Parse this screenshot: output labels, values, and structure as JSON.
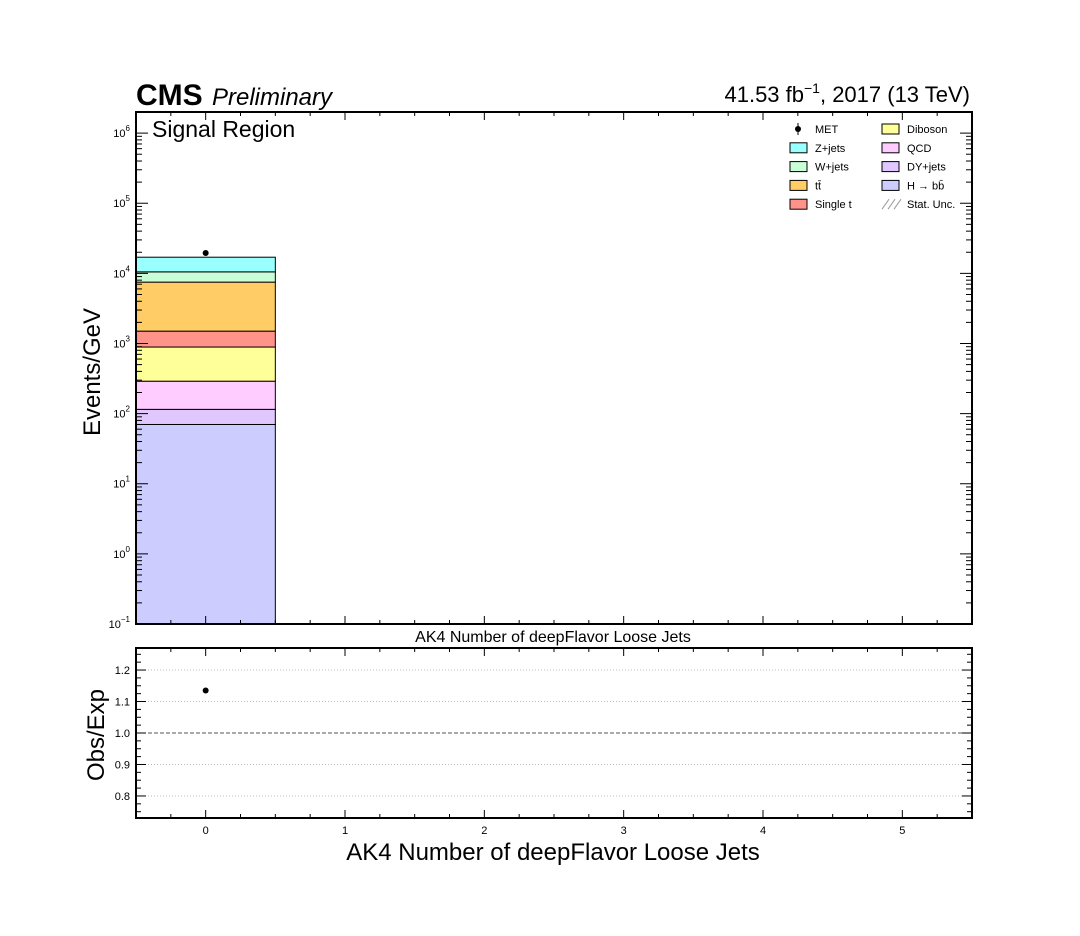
{
  "header": {
    "cms": "CMS",
    "preliminary": "Preliminary",
    "lumi_value": "41.53 fb",
    "lumi_exp": "−1",
    "lumi_rest": ", 2017 (13 TeV)"
  },
  "region_label": "Signal Region",
  "colors": {
    "Z+jets": "#99ffff",
    "W+jets": "#c8ffd6",
    "ttbar": "#ffcc66",
    "Single t": "#ff9289",
    "Diboson": "#ffff99",
    "QCD": "#ffccff",
    "DY+jets": "#e0c8ff",
    "H_bb": "#ccccff"
  },
  "chart_data": [
    {
      "type": "bar",
      "stacked": true,
      "yscale": "log",
      "ylabel": "Events/GeV",
      "xlabel": "AK4 Number of deepFlavor Loose Jets",
      "xlim": [
        -0.5,
        5.5
      ],
      "ylim": [
        0.1,
        2000000
      ],
      "x_ticks": [
        0,
        1,
        2,
        3,
        4,
        5
      ],
      "y_ticks": [
        {
          "value": 0.1,
          "base": "10",
          "exp": "−1"
        },
        {
          "value": 1,
          "base": "10",
          "exp": "0"
        },
        {
          "value": 10,
          "base": "10",
          "exp": "1"
        },
        {
          "value": 100,
          "base": "10",
          "exp": "2"
        },
        {
          "value": 1000,
          "base": "10",
          "exp": "3"
        },
        {
          "value": 10000,
          "base": "10",
          "exp": "4"
        },
        {
          "value": 100000,
          "base": "10",
          "exp": "5"
        },
        {
          "value": 1000000,
          "base": "10",
          "exp": "6"
        }
      ],
      "bin_edges": [
        -0.5,
        0.5
      ],
      "series": [
        {
          "key": "H_bb",
          "name": "H → bb̄",
          "values": [
            70
          ]
        },
        {
          "key": "DY+jets",
          "name": "DY+jets",
          "values": [
            45
          ]
        },
        {
          "key": "QCD",
          "name": "QCD",
          "values": [
            175
          ]
        },
        {
          "key": "Diboson",
          "name": "Diboson",
          "values": [
            600
          ]
        },
        {
          "key": "Single t",
          "name": "Single t",
          "values": [
            610
          ]
        },
        {
          "key": "ttbar",
          "name": "tt̄",
          "values": [
            6000
          ]
        },
        {
          "key": "W+jets",
          "name": "W+jets",
          "values": [
            3000
          ]
        },
        {
          "key": "Z+jets",
          "name": "Z+jets",
          "values": [
            6500
          ]
        }
      ],
      "data_points": {
        "name": "MET",
        "x": [
          0
        ],
        "y": [
          19500
        ]
      },
      "legend": {
        "placement": "top-right",
        "columns": [
          [
            {
              "label": "MET",
              "kind": "marker"
            },
            {
              "label": "Z+jets",
              "kind": "box",
              "key": "Z+jets"
            },
            {
              "label": "W+jets",
              "kind": "box",
              "key": "W+jets"
            },
            {
              "label": "tt̄",
              "kind": "box",
              "key": "ttbar"
            },
            {
              "label": "Single t",
              "kind": "box",
              "key": "Single t"
            }
          ],
          [
            {
              "label": "Diboson",
              "kind": "box",
              "key": "Diboson"
            },
            {
              "label": "QCD",
              "kind": "box",
              "key": "QCD"
            },
            {
              "label": "DY+jets",
              "kind": "box",
              "key": "DY+jets"
            },
            {
              "label": "H → bb̄",
              "kind": "box",
              "key": "H_bb"
            },
            {
              "label": "Stat. Unc.",
              "kind": "hatch"
            }
          ]
        ]
      },
      "top_axis_label": "AK4 Number of deepFlavor Loose Jets"
    },
    {
      "type": "scatter",
      "ylabel": "Obs/Exp",
      "xlabel": "AK4 Number of deepFlavor Loose Jets",
      "xlim": [
        -0.5,
        5.5
      ],
      "ylim": [
        0.73,
        1.27
      ],
      "x_ticks": [
        0,
        1,
        2,
        3,
        4,
        5
      ],
      "y_ticks": [
        0.8,
        0.9,
        1.0,
        1.1,
        1.2
      ],
      "grid": true,
      "reference_line": 1.0,
      "points": {
        "x": [
          0
        ],
        "y": [
          1.135
        ]
      }
    }
  ]
}
